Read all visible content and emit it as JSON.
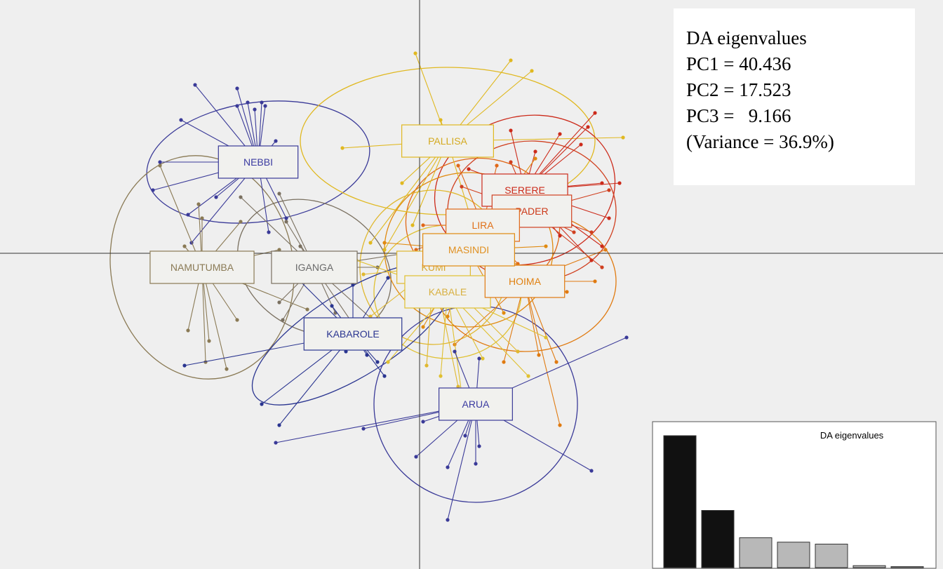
{
  "info": {
    "title": "DA eigenvalues",
    "lines": [
      "PC1 = 40.436",
      "PC2 = 17.523",
      "PC3 =   9.166",
      "(Variance = 36.9%)"
    ]
  },
  "chart_data": {
    "type": "scatter",
    "title": "",
    "xlabel": "",
    "ylabel": "",
    "grid": false,
    "xlim": [
      -6,
      7.4
    ],
    "ylim": [
      -4.5,
      3.6
    ],
    "colors": {
      "background": "#efefef",
      "blue": "#2c2c8c",
      "olive": "#8c7a50",
      "gold": "#e0b820",
      "orange": "#e08a10",
      "red": "#cc2a1a"
    },
    "groups": [
      {
        "name": "NEBBI",
        "color": "#3a3a98",
        "label_color": "#3a3aa0",
        "centroid": [
          -2.3,
          1.3
        ],
        "ellipse": {
          "rx": 1.6,
          "ry": 0.85,
          "angle": -8
        },
        "points": [
          [
            -3.2,
            2.4
          ],
          [
            -2.6,
            2.1
          ],
          [
            -2.6,
            2.35
          ],
          [
            -2.45,
            2.15
          ],
          [
            -2.25,
            2.15
          ],
          [
            -2.35,
            2.05
          ],
          [
            -3.4,
            1.9
          ],
          [
            -3.7,
            1.3
          ],
          [
            -3.8,
            0.9
          ],
          [
            -2.2,
            2.1
          ],
          [
            -2.9,
            0.8
          ],
          [
            -2.05,
            1.6
          ],
          [
            -3.3,
            0.55
          ],
          [
            -3.25,
            0.15
          ],
          [
            -2.15,
            0.3
          ],
          [
            -1.9,
            0.5
          ]
        ]
      },
      {
        "name": "NAMUTUMBA",
        "color": "#8a7a55",
        "label_color": "#8a7a55",
        "centroid": [
          -3.1,
          -0.2
        ],
        "ellipse": {
          "rx": 1.3,
          "ry": 1.6,
          "angle": -10
        },
        "points": [
          [
            -3.7,
            1.25
          ],
          [
            -3.15,
            0.7
          ],
          [
            -3.1,
            0.5
          ],
          [
            -3.35,
            0.1
          ],
          [
            -3.2,
            -0.05
          ],
          [
            -2.55,
            0.45
          ],
          [
            -2.0,
            0.05
          ],
          [
            -1.6,
            -0.8
          ],
          [
            -2.6,
            -0.95
          ],
          [
            -3.0,
            -1.25
          ],
          [
            -3.3,
            -1.1
          ],
          [
            -3.05,
            -1.55
          ],
          [
            -2.75,
            -1.65
          ]
        ]
      },
      {
        "name": "IGANGA",
        "color": "#7a7060",
        "label_color": "#6a6a6a",
        "centroid": [
          -1.5,
          -0.2
        ],
        "ellipse": {
          "rx": 1.15,
          "ry": 0.9,
          "angle": 30
        },
        "points": [
          [
            -2.55,
            0.8
          ],
          [
            -2.0,
            0.85
          ],
          [
            -1.9,
            0.45
          ],
          [
            -1.7,
            0.1
          ],
          [
            -2.0,
            -0.7
          ],
          [
            -1.2,
            -0.85
          ],
          [
            -0.6,
            -0.2
          ],
          [
            -0.2,
            0.0
          ],
          [
            -0.75,
            -1.3
          ],
          [
            -0.5,
            -1.1
          ],
          [
            -1.95,
            -0.95
          ]
        ]
      },
      {
        "name": "PALLISA",
        "color": "#e0b820",
        "label_color": "#d4aa20",
        "centroid": [
          0.4,
          1.6
        ],
        "ellipse": {
          "rx": 2.1,
          "ry": 1.05,
          "angle": 0
        },
        "points": [
          [
            -0.06,
            2.85
          ],
          [
            1.3,
            2.75
          ],
          [
            1.6,
            2.6
          ],
          [
            0.3,
            1.9
          ],
          [
            -1.1,
            1.5
          ],
          [
            -0.7,
            0.15
          ],
          [
            -0.5,
            0.05
          ],
          [
            2.9,
            1.65
          ],
          [
            -0.25,
            1.0
          ],
          [
            -0.1,
            0.4
          ],
          [
            0.7,
            0.6
          ]
        ]
      },
      {
        "name": "SERERE",
        "color": "#cc2a1a",
        "label_color": "#cc2a1a",
        "centroid": [
          1.5,
          0.9
        ],
        "ellipse": {
          "rx": 1.3,
          "ry": 1.05,
          "angle": -15
        },
        "points": [
          [
            2.5,
            2.0
          ],
          [
            2.4,
            1.8
          ],
          [
            2.0,
            1.7
          ],
          [
            2.3,
            1.55
          ],
          [
            2.6,
            1.0
          ],
          [
            2.85,
            1.0
          ],
          [
            2.7,
            0.5
          ],
          [
            2.6,
            0.1
          ],
          [
            2.0,
            0.25
          ],
          [
            2.45,
            -0.1
          ],
          [
            1.3,
            1.75
          ],
          [
            1.65,
            1.45
          ],
          [
            0.7,
            1.2
          ],
          [
            1.0,
            0.55
          ]
        ]
      },
      {
        "name": "PADER",
        "color": "#d04020",
        "label_color": "#cc3a1a",
        "centroid": [
          1.6,
          0.6
        ],
        "ellipse": {
          "rx": 1.2,
          "ry": 1.0,
          "angle": 0
        },
        "points": [
          [
            2.7,
            0.9
          ],
          [
            2.2,
            0.3
          ],
          [
            2.6,
            -0.2
          ],
          [
            1.3,
            1.3
          ],
          [
            0.6,
            0.95
          ],
          [
            0.9,
            0.2
          ],
          [
            1.95,
            1.05
          ],
          [
            2.45,
            0.3
          ]
        ]
      },
      {
        "name": "LIRA",
        "color": "#e06818",
        "label_color": "#e07018",
        "centroid": [
          0.9,
          0.4
        ],
        "ellipse": {
          "rx": 1.1,
          "ry": 0.95,
          "angle": 10
        },
        "points": [
          [
            0.55,
            1.25
          ],
          [
            0.05,
            0.4
          ],
          [
            -0.05,
            0.05
          ],
          [
            1.4,
            -0.15
          ],
          [
            1.9,
            0.65
          ],
          [
            0.25,
            -0.25
          ],
          [
            1.1,
            1.25
          ]
        ]
      },
      {
        "name": "MASINDI",
        "color": "#e08a10",
        "label_color": "#e09020",
        "centroid": [
          0.7,
          0.05
        ],
        "ellipse": {
          "rx": 1.2,
          "ry": 1.1,
          "angle": 0
        },
        "points": [
          [
            -0.5,
            0.15
          ],
          [
            -0.25,
            -0.35
          ],
          [
            1.8,
            0.1
          ],
          [
            0.4,
            -0.9
          ],
          [
            1.2,
            -0.85
          ],
          [
            0.05,
            -1.05
          ],
          [
            1.65,
            1.35
          ],
          [
            2.05,
            -0.35
          ]
        ]
      },
      {
        "name": "HOIMA",
        "color": "#e07a10",
        "label_color": "#e08010",
        "centroid": [
          1.5,
          -0.4
        ],
        "ellipse": {
          "rx": 1.3,
          "ry": 1.0,
          "angle": 0
        },
        "points": [
          [
            2.65,
            0.05
          ],
          [
            2.1,
            -0.55
          ],
          [
            1.7,
            -1.45
          ],
          [
            2.0,
            -2.45
          ],
          [
            0.5,
            -1.3
          ],
          [
            1.2,
            -1.55
          ],
          [
            2.5,
            -0.4
          ],
          [
            1.95,
            -1.55
          ]
        ]
      },
      {
        "name": "KUMI",
        "color": "#e0b830",
        "label_color": "#d8a830",
        "centroid": [
          0.2,
          -0.2
        ],
        "ellipse": {
          "rx": 1.05,
          "ry": 1.1,
          "angle": 0
        },
        "points": [
          [
            -0.7,
            -0.9
          ],
          [
            0.1,
            -1.6
          ],
          [
            0.55,
            -1.9
          ],
          [
            1.4,
            -1.4
          ],
          [
            -0.8,
            -0.3
          ],
          [
            0.9,
            -0.6
          ]
        ]
      },
      {
        "name": "KABALE",
        "color": "#e0c030",
        "label_color": "#d8b040",
        "centroid": [
          0.4,
          -0.55
        ],
        "ellipse": {
          "rx": 1.05,
          "ry": 0.95,
          "angle": 0
        },
        "points": [
          [
            -0.45,
            -1.55
          ],
          [
            0.3,
            -1.75
          ],
          [
            0.9,
            -1.5
          ],
          [
            1.55,
            -1.75
          ],
          [
            -0.9,
            -0.1
          ],
          [
            0.6,
            -2.0
          ],
          [
            1.8,
            -1.2
          ]
        ]
      },
      {
        "name": "KABAROLE",
        "color": "#2a3590",
        "label_color": "#2a3590",
        "centroid": [
          -0.95,
          -1.15
        ],
        "ellipse": {
          "rx": 1.65,
          "ry": 0.6,
          "angle": -32
        },
        "points": [
          [
            -3.35,
            -1.6
          ],
          [
            -2.25,
            -2.15
          ],
          [
            -2.0,
            -2.45
          ],
          [
            -1.3,
            -1.35
          ],
          [
            -0.75,
            -1.45
          ],
          [
            -0.5,
            -1.75
          ],
          [
            -1.25,
            -0.75
          ],
          [
            -0.95,
            -0.45
          ],
          [
            -0.45,
            -0.35
          ],
          [
            -2.05,
            -0.05
          ],
          [
            -0.6,
            -1.55
          ],
          [
            -1.05,
            -1.4
          ]
        ]
      },
      {
        "name": "ARUA",
        "color": "#3a3a98",
        "label_color": "#3a3aa0",
        "centroid": [
          0.8,
          -2.15
        ],
        "ellipse": {
          "rx": 1.45,
          "ry": 1.4,
          "angle": 0
        },
        "points": [
          [
            -2.05,
            -2.7
          ],
          [
            -0.8,
            -2.5
          ],
          [
            0.05,
            -2.4
          ],
          [
            0.65,
            -2.6
          ],
          [
            0.85,
            -2.75
          ],
          [
            0.8,
            -3.0
          ],
          [
            0.4,
            -3.05
          ],
          [
            0.4,
            -3.8
          ],
          [
            -0.05,
            -2.9
          ],
          [
            2.45,
            -3.1
          ],
          [
            2.95,
            -1.2
          ],
          [
            0.5,
            -1.4
          ],
          [
            0.85,
            -1.5
          ]
        ]
      }
    ],
    "eigen_inset": {
      "title": "DA eigenvalues",
      "values": [
        40.436,
        17.523,
        9.166,
        7.8,
        7.2,
        0.6,
        0.3
      ],
      "retained": 2,
      "retained_color": "#111111",
      "other_color": "#b8b8b8"
    }
  }
}
